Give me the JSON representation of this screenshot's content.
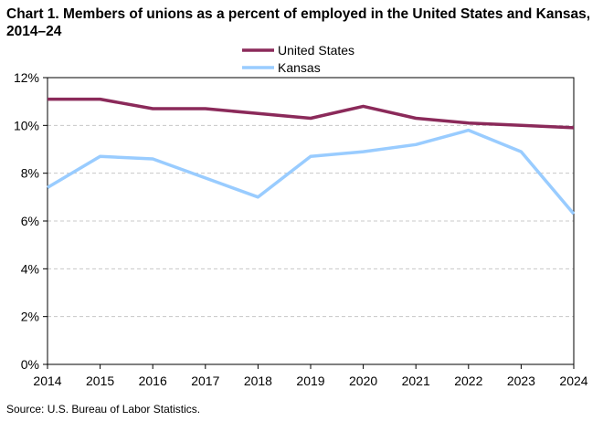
{
  "chart_data": {
    "type": "line",
    "title": "Chart 1. Members of unions as a percent of employed  in the United States and Kansas, 2014–24",
    "x": [
      2014,
      2015,
      2016,
      2017,
      2018,
      2019,
      2020,
      2021,
      2022,
      2023,
      2024
    ],
    "x_tick_labels": [
      "2014",
      "2015",
      "2016",
      "2017",
      "2018",
      "2019",
      "2020",
      "2021",
      "2022",
      "2023",
      "2024"
    ],
    "y_tick_values": [
      0,
      2,
      4,
      6,
      8,
      10,
      12
    ],
    "y_tick_labels": [
      "0%",
      "2%",
      "4%",
      "6%",
      "8%",
      "10%",
      "12%"
    ],
    "ylim": [
      0,
      12
    ],
    "xlabel": "",
    "ylabel": "",
    "grid": "horizontal dashed",
    "legend_position": "top-center",
    "series": [
      {
        "name": "United States",
        "color": "#8B2A5A",
        "values": [
          11.1,
          11.1,
          10.7,
          10.7,
          10.5,
          10.3,
          10.8,
          10.3,
          10.1,
          10.0,
          9.9
        ]
      },
      {
        "name": "Kansas",
        "color": "#99CCFF",
        "values": [
          7.4,
          8.7,
          8.6,
          7.8,
          7.0,
          8.7,
          8.9,
          9.2,
          9.8,
          8.9,
          6.3
        ]
      }
    ]
  },
  "source": "Source: U.S. Bureau of Labor Statistics."
}
